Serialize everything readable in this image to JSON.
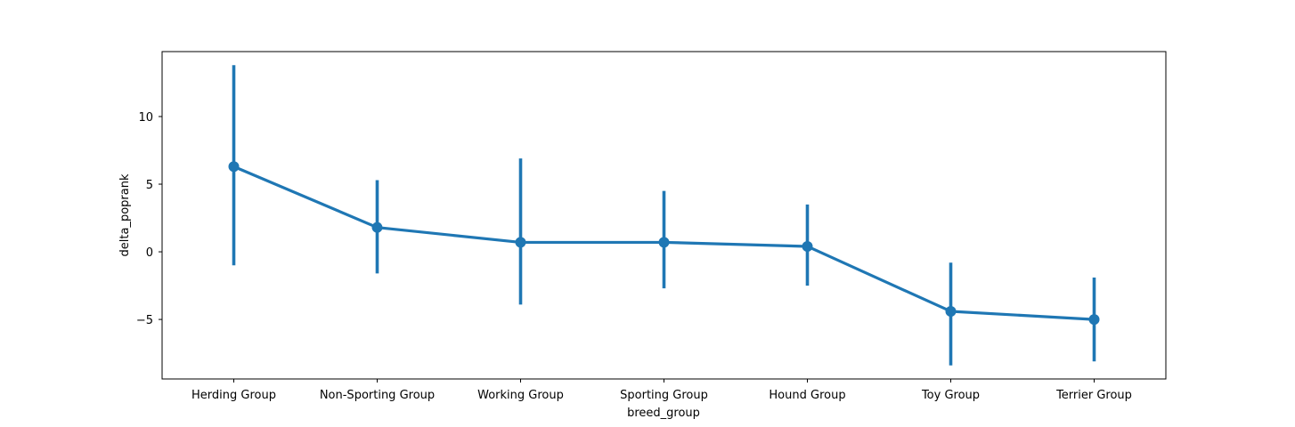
{
  "chart_data": {
    "type": "line",
    "subtype": "pointplot-with-error-bars",
    "title": "",
    "xlabel": "breed_group",
    "ylabel": "delta_poprank",
    "categories": [
      "Herding Group",
      "Non-Sporting Group",
      "Working Group",
      "Sporting Group",
      "Hound Group",
      "Toy Group",
      "Terrier Group"
    ],
    "series": [
      {
        "color": "#1f77b4",
        "values": [
          6.3,
          1.8,
          0.7,
          0.7,
          0.4,
          -4.4,
          -5.0
        ],
        "ci_low": [
          -1.0,
          -1.6,
          -3.9,
          -2.7,
          -2.5,
          -8.4,
          -8.1
        ],
        "ci_high": [
          13.8,
          5.3,
          6.9,
          4.5,
          3.5,
          -0.8,
          -1.9
        ]
      }
    ],
    "ylim": [
      -9.4,
      14.8
    ],
    "yticks": [
      -5,
      0,
      5,
      10
    ],
    "ytick_labels": [
      "−5",
      "0",
      "5",
      "10"
    ],
    "grid": false,
    "legend": "none"
  }
}
